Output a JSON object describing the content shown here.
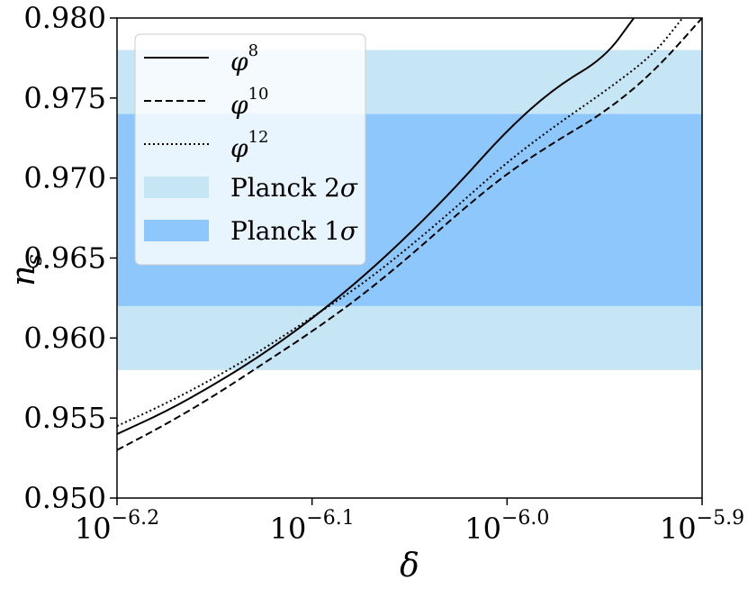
{
  "chart_data": {
    "type": "line",
    "xlabel": "δ",
    "ylabel": {
      "base": "n",
      "sub": "s"
    },
    "xscale": "log",
    "xlim": [
      -6.2,
      -5.9
    ],
    "ylim": [
      0.95,
      0.98
    ],
    "x_ticks": [
      {
        "value": -6.2,
        "base": "10",
        "exp": "−6.2"
      },
      {
        "value": -6.1,
        "base": "10",
        "exp": "−6.1"
      },
      {
        "value": -6.0,
        "base": "10",
        "exp": "−6.0"
      },
      {
        "value": -5.9,
        "base": "10",
        "exp": "−5.9"
      }
    ],
    "y_ticks": [
      {
        "value": 0.95,
        "label": "0.950"
      },
      {
        "value": 0.955,
        "label": "0.955"
      },
      {
        "value": 0.96,
        "label": "0.960"
      },
      {
        "value": 0.965,
        "label": "0.965"
      },
      {
        "value": 0.97,
        "label": "0.970"
      },
      {
        "value": 0.975,
        "label": "0.975"
      },
      {
        "value": 0.98,
        "label": "0.980"
      }
    ],
    "bands": [
      {
        "name": "Planck 2σ",
        "label_text": "Planck 2",
        "label_symbol": "σ",
        "range": [
          0.958,
          0.978
        ],
        "color": "#c6e6f5"
      },
      {
        "name": "Planck 1σ",
        "label_text": "Planck 1",
        "label_symbol": "σ",
        "range": [
          0.962,
          0.974
        ],
        "color": "#8ec7fb"
      }
    ],
    "series": [
      {
        "name": "φ^8",
        "label_base": "φ",
        "label_sup": "8",
        "dash": "solid",
        "x": [
          -6.2,
          -6.175,
          -6.15,
          -6.125,
          -6.1,
          -6.075,
          -6.05,
          -6.025,
          -6.0,
          -5.975,
          -5.95,
          -5.935
        ],
        "y": [
          0.954,
          0.9554,
          0.9571,
          0.959,
          0.9612,
          0.9637,
          0.9665,
          0.9696,
          0.973,
          0.9757,
          0.9775,
          0.98
        ]
      },
      {
        "name": "φ^10",
        "label_base": "φ",
        "label_sup": "10",
        "dash": "dashed",
        "x": [
          -6.2,
          -6.175,
          -6.15,
          -6.125,
          -6.1,
          -6.075,
          -6.05,
          -6.025,
          -6.0,
          -5.975,
          -5.95,
          -5.925,
          -5.9
        ],
        "y": [
          0.953,
          0.9546,
          0.9564,
          0.9584,
          0.9604,
          0.9626,
          0.9651,
          0.9678,
          0.9703,
          0.9723,
          0.9741,
          0.9766,
          0.98
        ]
      },
      {
        "name": "φ^12",
        "label_base": "φ",
        "label_sup": "12",
        "dash": "dotted",
        "x": [
          -6.2,
          -6.175,
          -6.15,
          -6.125,
          -6.1,
          -6.075,
          -6.05,
          -6.025,
          -6.0,
          -5.975,
          -5.95,
          -5.925,
          -5.91
        ],
        "y": [
          0.9545,
          0.9559,
          0.9575,
          0.9593,
          0.9613,
          0.9633,
          0.9657,
          0.9683,
          0.971,
          0.9733,
          0.9754,
          0.9777,
          0.98
        ]
      }
    ],
    "legend": {
      "position": "top-left"
    }
  }
}
